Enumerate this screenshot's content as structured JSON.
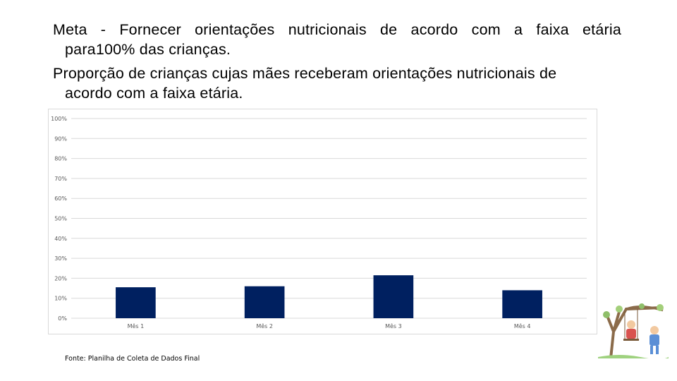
{
  "meta_text": {
    "line1": "Meta - Fornecer orientações nutricionais de acordo com a faixa etária",
    "line2": "para100% das crianças."
  },
  "proportion_text": {
    "line1": "Proporção de crianças cujas mães receberam orientações nutricionais de",
    "line2": "acordo com a faixa etária."
  },
  "source": "Fonte: Planilha de Coleta de Dados Final",
  "illustration_icon": "children-on-tree-swing-illustration",
  "chart_data": {
    "type": "bar",
    "categories": [
      "Mês 1",
      "Mês 2",
      "Mês 3",
      "Mês 4"
    ],
    "values": [
      15.5,
      16,
      21.5,
      14
    ],
    "y_ticks": [
      "0%",
      "10%",
      "20%",
      "30%",
      "40%",
      "50%",
      "60%",
      "70%",
      "80%",
      "90%",
      "100%"
    ],
    "ylim": [
      0,
      100
    ],
    "unit": "%",
    "grid": true,
    "bar_color": "#002060",
    "gridline_color": "#d9d9d9"
  }
}
